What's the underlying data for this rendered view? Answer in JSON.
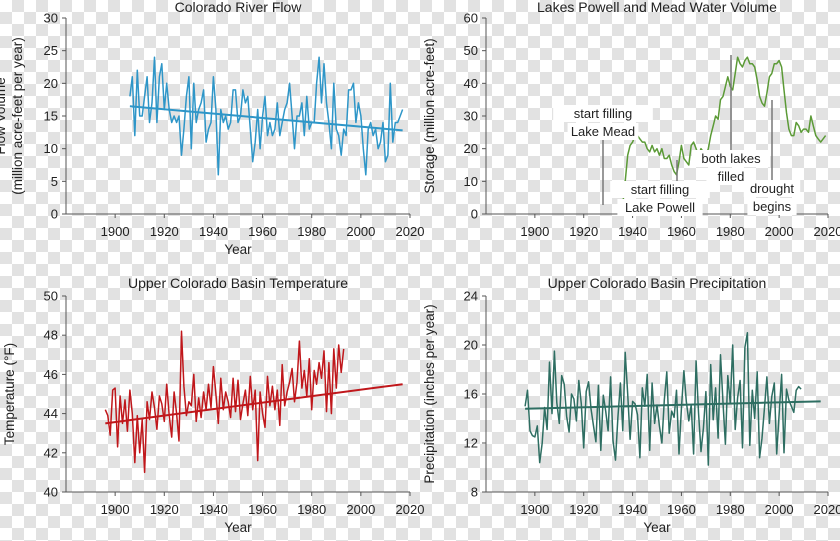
{
  "chart_data": [
    {
      "id": "flow",
      "type": "line",
      "title": "Colorado River Flow",
      "xlabel": "Year",
      "ylabel_lines": [
        "Flow Volume",
        "(million acre-feet per year)"
      ],
      "xlim": [
        1880,
        2020
      ],
      "ylim": [
        0,
        30
      ],
      "xticks": [
        1900,
        1920,
        1940,
        1960,
        1980,
        2000,
        2020
      ],
      "yticks": [
        0,
        5,
        10,
        15,
        20,
        25,
        30
      ],
      "color": "#2e96c8",
      "series_start": 1906,
      "values": [
        18,
        21,
        12,
        22,
        15,
        15,
        18,
        21,
        14,
        17,
        24,
        14,
        21,
        23,
        16,
        20,
        16,
        14,
        15,
        14,
        15,
        9,
        13,
        18,
        21,
        10,
        20,
        14,
        16,
        17,
        19,
        11,
        13,
        14,
        21,
        16,
        6,
        16,
        14,
        15,
        13,
        14,
        19,
        19,
        14,
        15,
        19,
        17,
        18,
        13,
        8,
        11,
        16,
        10,
        15,
        18,
        12,
        14,
        12,
        13,
        17,
        12,
        14,
        16,
        17,
        20,
        15,
        10,
        15,
        15,
        17,
        12,
        18,
        13,
        14,
        14,
        20,
        24,
        17,
        23,
        17,
        14,
        10,
        20,
        13,
        12,
        9,
        13,
        12,
        19,
        19,
        20,
        14,
        17,
        15,
        10,
        6,
        13,
        14,
        12,
        13,
        10,
        11,
        14,
        8,
        9,
        20,
        11,
        14,
        14,
        15,
        16
      ],
      "trend": [
        [
          1906,
          16.5
        ],
        [
          2017,
          12.8
        ]
      ],
      "annotations": []
    },
    {
      "id": "storage",
      "type": "line",
      "title": "Lakes Powell and Mead Water Volume",
      "xlabel": "",
      "ylabel_lines": [
        "Storage (million acre-feet)"
      ],
      "xlim": [
        1880,
        2020
      ],
      "ylim": [
        0,
        60
      ],
      "xticks": [
        1900,
        1920,
        1940,
        1960,
        1980,
        2000,
        2020
      ],
      "yticks": [
        0,
        10,
        20,
        30,
        40,
        50,
        60
      ],
      "color": "#5b9a36",
      "series_start": 1935,
      "values": [
        1,
        3,
        10,
        18,
        21,
        22,
        24,
        24,
        23,
        22,
        22,
        20,
        19,
        21,
        19,
        20,
        18,
        20,
        17,
        17,
        18,
        15,
        13,
        12,
        16,
        21,
        17,
        16,
        15,
        21,
        22,
        20,
        18,
        20,
        19,
        18,
        20,
        24,
        27,
        30,
        29,
        35,
        36,
        39,
        42,
        39,
        38,
        43,
        48,
        46,
        45,
        47,
        48,
        46,
        46,
        45,
        41,
        36,
        34,
        33,
        37,
        42,
        43,
        46,
        46,
        47,
        45,
        38,
        31,
        26,
        24,
        24,
        28,
        27,
        25,
        26,
        26,
        25,
        30,
        27,
        24,
        23,
        22,
        23,
        24
      ],
      "trend": [],
      "annotations": [
        {
          "lines": [
            "start filling",
            "Lake Mead"
          ],
          "year": 1935,
          "value": 0
        },
        {
          "lines": [
            "start filling",
            "Lake Powell"
          ],
          "year": 1963,
          "value": 13
        },
        {
          "lines": [
            "both lakes",
            "filled"
          ],
          "year": 1983,
          "value": 48
        },
        {
          "lines": [
            "drought",
            "begins"
          ],
          "year": 2000,
          "value": 37
        }
      ]
    },
    {
      "id": "temperature",
      "type": "line",
      "title": "Upper Colorado Basin Temperature",
      "xlabel": "Year",
      "ylabel_lines": [
        "Temperature (°F)"
      ],
      "xlim": [
        1880,
        2020
      ],
      "ylim": [
        40,
        50
      ],
      "xticks": [
        1900,
        1920,
        1940,
        1960,
        1980,
        2000,
        2020
      ],
      "yticks": [
        40,
        42,
        44,
        46,
        48,
        50
      ],
      "color": "#c0171b",
      "series_start": 1896,
      "values": [
        44.2,
        43.9,
        42.9,
        45.2,
        45.3,
        42.3,
        44.9,
        43.5,
        44.7,
        43.1,
        45.2,
        44.0,
        41.5,
        43.9,
        42.0,
        43.7,
        41.0,
        44.6,
        43.7,
        45.1,
        44.3,
        43.2,
        44.9,
        44.5,
        43.6,
        45.5,
        43.9,
        42.8,
        45.1,
        44.0,
        42.6,
        48.2,
        45.4,
        43.9,
        44.6,
        44.4,
        46.0,
        43.6,
        44.8,
        43.8,
        45.1,
        44.2,
        45.5,
        44.3,
        46.4,
        45.0,
        43.5,
        45.8,
        44.2,
        45.1,
        44.6,
        43.8,
        45.8,
        44.1,
        45.7,
        43.7,
        44.5,
        45.2,
        43.9,
        45.9,
        44.2,
        45.2,
        41.6,
        45.1,
        44.0,
        43.3,
        45.9,
        44.4,
        45.4,
        44.2,
        45.2,
        43.4,
        46.5,
        44.4,
        45.1,
        45.6,
        46.3,
        44.6,
        45.6,
        47.7,
        45.3,
        46.2,
        44.9,
        46.8,
        44.2,
        46.2,
        45.5,
        46.6,
        45.8,
        47.2,
        44.1,
        46.6,
        44.0,
        47.3,
        45.3,
        47.5,
        46.1,
        47.3
      ],
      "trend": [
        [
          1896,
          43.5
        ],
        [
          2017,
          45.5
        ]
      ],
      "annotations": []
    },
    {
      "id": "precipitation",
      "type": "line",
      "title": "Upper Colorado Basin Precipitation",
      "xlabel": "Year",
      "ylabel_lines": [
        "Precipitation (inches per year)"
      ],
      "xlim": [
        1880,
        2020
      ],
      "ylim": [
        8,
        24
      ],
      "xticks": [
        1900,
        1920,
        1940,
        1960,
        1980,
        2000,
        2020
      ],
      "yticks": [
        8,
        12,
        16,
        20,
        24
      ],
      "color": "#2e6e62",
      "series_start": 1896,
      "values": [
        15.0,
        16.3,
        13.0,
        12.6,
        12.5,
        13.4,
        10.4,
        12.0,
        14.9,
        13.1,
        18.6,
        14.4,
        19.5,
        15.3,
        13.6,
        17.5,
        16.8,
        14.2,
        12.9,
        16.0,
        15.6,
        13.8,
        17.1,
        15.2,
        11.6,
        16.2,
        17.0,
        14.8,
        13.4,
        12.1,
        16.7,
        11.4,
        15.9,
        14.6,
        13.0,
        17.4,
        12.2,
        10.6,
        14.1,
        16.9,
        13.0,
        19.4,
        16.0,
        12.3,
        15.4,
        15.2,
        14.3,
        10.8,
        16.5,
        15.0,
        17.6,
        11.4,
        16.9,
        13.6,
        15.1,
        13.4,
        12.0,
        15.5,
        17.8,
        12.8,
        14.6,
        14.1,
        16.3,
        11.1,
        14.8,
        17.9,
        15.4,
        13.8,
        15.1,
        11.1,
        18.7,
        14.5,
        11.3,
        13.2,
        16.2,
        10.2,
        18.4,
        13.9,
        16.5,
        12.4,
        19.2,
        15.3,
        11.9,
        17.5,
        15.2,
        20.0,
        13.1,
        15.7,
        17.1,
        11.6,
        19.8,
        21.0,
        11.8,
        16.3,
        14.0,
        17.8,
        10.8,
        12.4,
        14.9,
        17.4,
        13.6,
        15.8,
        16.9,
        11.1,
        14.3,
        17.6,
        11.2,
        16.4,
        15.5,
        15.0,
        14.5,
        16.3,
        16.6,
        16.4
      ],
      "trend": [
        [
          1896,
          14.8
        ],
        [
          2017,
          15.4
        ]
      ],
      "annotations": []
    }
  ]
}
